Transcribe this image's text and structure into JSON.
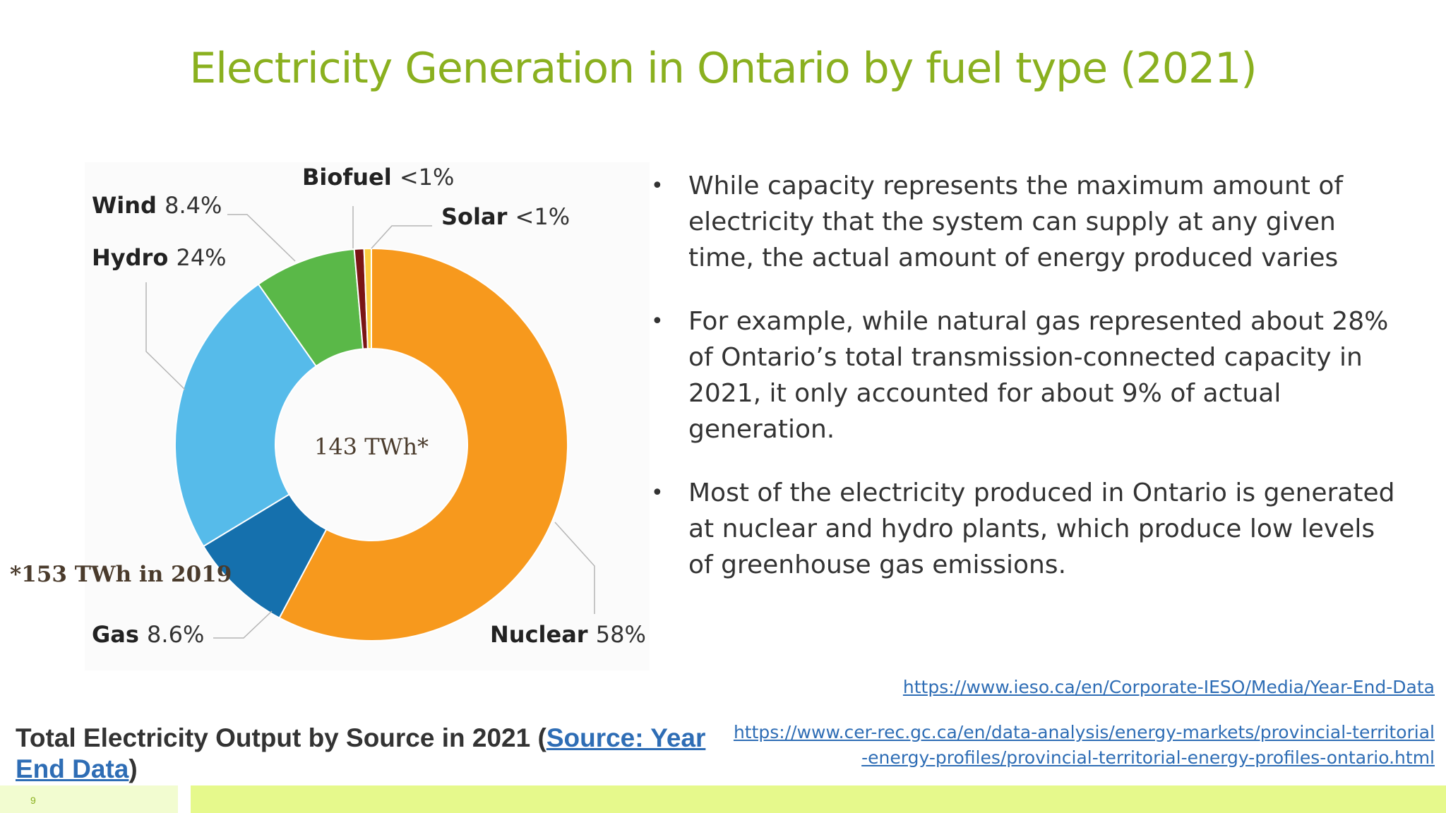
{
  "slide": {
    "title": "Electricity Generation in Ontario by fuel type (2021)",
    "page_number": "9"
  },
  "bullets": [
    "While capacity represents the maximum amount of electricity that the system can supply at any given time, the actual amount of energy produced varies",
    "For example, while natural gas represented about 28% of Ontario’s total transmission-connected capacity in 2021, it only accounted for about 9% of actual generation.",
    "Most of the electricity produced in Ontario is generated at nuclear and hydro plants, which produce low levels of greenhouse gas emissions."
  ],
  "bullet_glyph": "•",
  "caption": {
    "prefix": "Total Electricity Output by Source in 2021 (",
    "link_text": "Source: Year End Data",
    "suffix": ")"
  },
  "links": [
    "https://www.ieso.ca/en/Corporate-IESO/Media/Year-End-Data",
    "https://www.cer-rec.gc.ca/en/data-analysis/energy-markets/provincial-territorial-energy-profiles/provincial-territorial-energy-profiles-ontario.html"
  ],
  "colors": {
    "title": "#8ab01f",
    "link": "#2e6db5",
    "footer_left": "#f2fcd0",
    "footer_right": "#e6f98c"
  },
  "chart_data": {
    "type": "pie",
    "style": "donut",
    "center_label": "143 TWh*",
    "note": "*153 TWh in 2019",
    "slices": [
      {
        "name": "Nuclear",
        "label": "58%",
        "value": 58,
        "color": "#f7991d"
      },
      {
        "name": "Gas",
        "label": "8.6%",
        "value": 8.6,
        "color": "#1570ad"
      },
      {
        "name": "Hydro",
        "label": "24%",
        "value": 24,
        "color": "#56bbea"
      },
      {
        "name": "Wind",
        "label": "8.4%",
        "value": 8.4,
        "color": "#5ab848"
      },
      {
        "name": "Biofuel",
        "label": "<1%",
        "value": 0.8,
        "color": "#7a1515"
      },
      {
        "name": "Solar",
        "label": "<1%",
        "value": 0.6,
        "color": "#fccd3f"
      }
    ]
  }
}
